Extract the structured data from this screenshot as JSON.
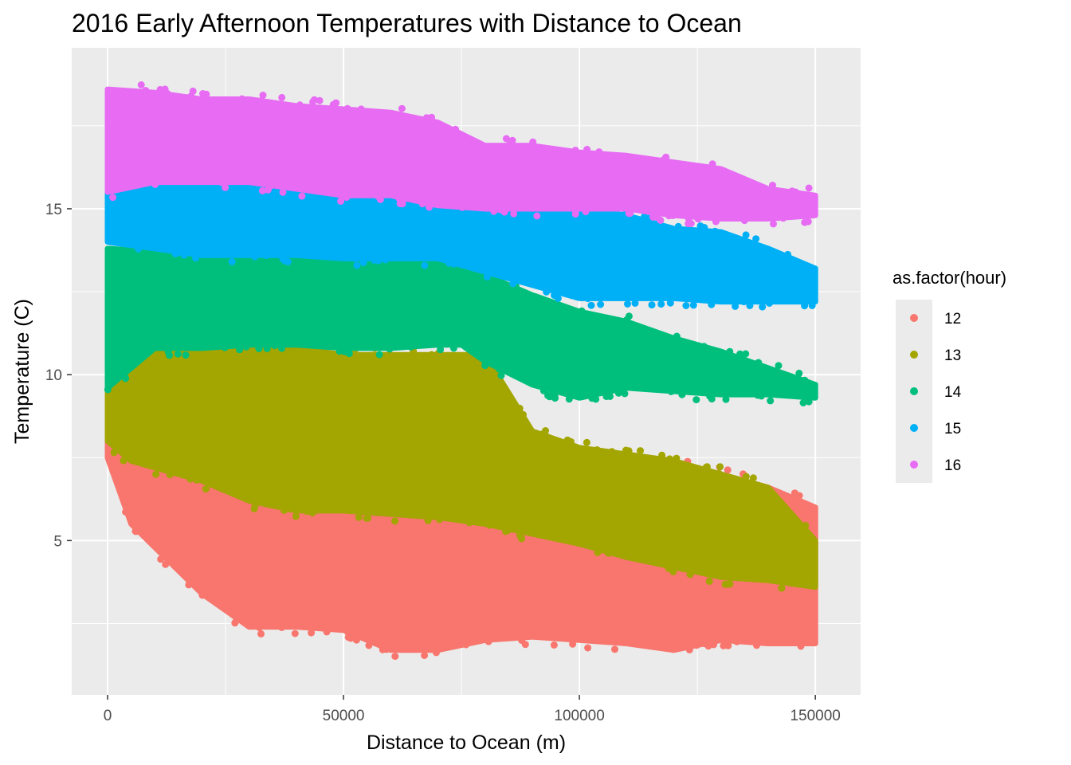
{
  "chart_data": {
    "type": "scatter",
    "title": "2016 Early Afternoon Temperatures with Distance to Ocean",
    "xlabel": "Distance to Ocean (m)",
    "ylabel": "Temperature (C)",
    "xlim": [
      -7600,
      159600
    ],
    "ylim": [
      0.35,
      19.85
    ],
    "x_ticks": [
      0,
      50000,
      100000,
      150000
    ],
    "x_tick_labels": [
      "0",
      "50000",
      "100000",
      "150000"
    ],
    "y_ticks": [
      5,
      10,
      15
    ],
    "y_tick_labels": [
      "5",
      "10",
      "15"
    ],
    "grid": true,
    "legend": {
      "title": "as.factor(hour)",
      "position": "right"
    },
    "series": [
      {
        "name": "12",
        "color": "#F8766D",
        "x": [
          0,
          5000,
          10000,
          20000,
          30000,
          40000,
          50000,
          60000,
          70000,
          80000,
          90000,
          100000,
          110000,
          120000,
          130000,
          140000,
          150000
        ],
        "y_high": [
          12.0,
          8.8,
          8.0,
          7.5,
          7.0,
          6.9,
          6.7,
          6.2,
          6.0,
          8.6,
          7.2,
          7.0,
          7.4,
          7.3,
          7.0,
          6.6,
          6.0
        ],
        "y_low": [
          7.5,
          5.5,
          4.8,
          3.4,
          2.4,
          2.4,
          2.3,
          1.7,
          1.7,
          2.0,
          2.1,
          2.0,
          1.9,
          1.7,
          2.0,
          1.9,
          1.9
        ]
      },
      {
        "name": "13",
        "color": "#A3A500",
        "x": [
          0,
          5000,
          10000,
          20000,
          30000,
          40000,
          50000,
          60000,
          70000,
          80000,
          90000,
          100000,
          110000,
          120000,
          130000,
          140000,
          150000
        ],
        "y_high": [
          12.0,
          11.5,
          11.0,
          10.8,
          10.8,
          10.8,
          10.6,
          10.6,
          10.6,
          10.6,
          8.3,
          7.8,
          7.6,
          7.4,
          7.0,
          6.6,
          5.0
        ],
        "y_low": [
          8.0,
          7.4,
          7.2,
          6.8,
          6.2,
          5.9,
          5.9,
          5.8,
          5.7,
          5.5,
          5.2,
          4.9,
          4.5,
          4.2,
          3.9,
          3.8,
          3.6
        ]
      },
      {
        "name": "14",
        "color": "#00BF7D",
        "x": [
          0,
          10000,
          20000,
          30000,
          40000,
          50000,
          60000,
          70000,
          75000,
          80000,
          90000,
          100000,
          110000,
          120000,
          130000,
          140000,
          150000
        ],
        "y_high": [
          13.8,
          13.7,
          13.6,
          13.6,
          13.5,
          13.5,
          13.5,
          13.5,
          13.4,
          13.0,
          12.4,
          11.9,
          11.6,
          11.1,
          10.7,
          10.2,
          9.7
        ],
        "y_low": [
          9.6,
          10.8,
          10.8,
          10.9,
          10.9,
          10.8,
          10.8,
          10.9,
          10.9,
          10.4,
          9.7,
          9.3,
          9.6,
          9.5,
          9.4,
          9.4,
          9.3
        ]
      },
      {
        "name": "15",
        "color": "#00B0F6",
        "x": [
          0,
          10000,
          20000,
          30000,
          40000,
          50000,
          60000,
          70000,
          80000,
          90000,
          100000,
          110000,
          120000,
          130000,
          140000,
          150000
        ],
        "y_high": [
          15.5,
          15.9,
          15.9,
          15.8,
          15.7,
          15.6,
          15.4,
          15.6,
          15.3,
          15.2,
          15.0,
          14.8,
          14.4,
          14.3,
          13.8,
          13.2
        ],
        "y_low": [
          14.0,
          13.8,
          13.6,
          13.6,
          13.6,
          13.5,
          13.5,
          13.5,
          13.1,
          12.7,
          12.3,
          12.3,
          12.3,
          12.2,
          12.2,
          12.2
        ]
      },
      {
        "name": "16",
        "color": "#E76BF3",
        "x": [
          0,
          10000,
          20000,
          30000,
          40000,
          50000,
          60000,
          70000,
          80000,
          90000,
          100000,
          110000,
          120000,
          130000,
          140000,
          150000
        ],
        "y_high": [
          18.6,
          18.5,
          18.3,
          18.3,
          18.1,
          18.0,
          17.9,
          17.6,
          16.9,
          16.9,
          16.7,
          16.6,
          16.4,
          16.2,
          15.6,
          15.4
        ],
        "y_low": [
          15.5,
          15.8,
          15.8,
          15.8,
          15.6,
          15.4,
          15.4,
          15.1,
          15.0,
          15.0,
          15.0,
          15.0,
          14.8,
          14.7,
          14.7,
          14.8
        ]
      }
    ]
  }
}
